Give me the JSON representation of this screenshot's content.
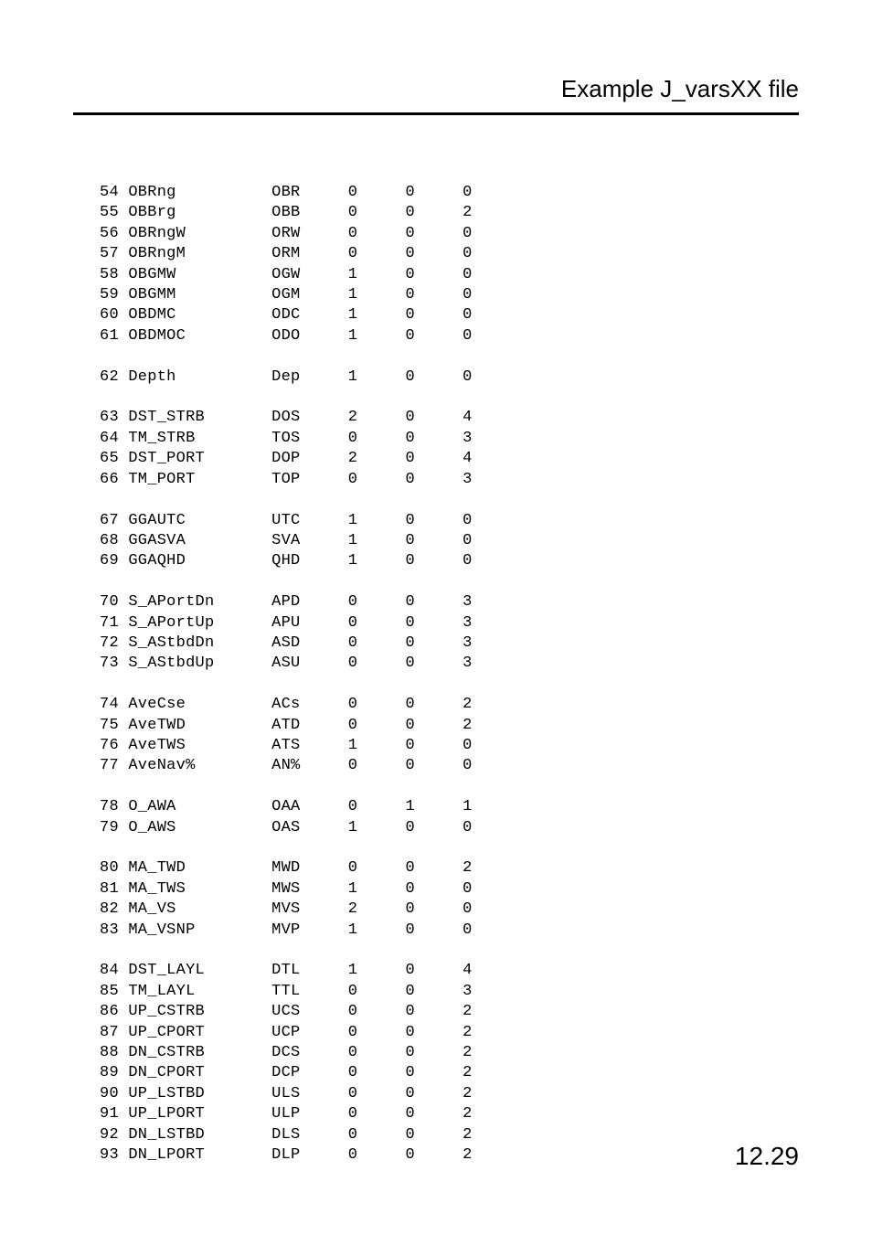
{
  "header": {
    "title": "Example J_varsXX file"
  },
  "pageNumber": "12.29",
  "rows": [
    {
      "num": "54",
      "name": "OBRng",
      "code": "OBR",
      "c1": "0",
      "c2": "0",
      "c3": "0"
    },
    {
      "num": "55",
      "name": "OBBrg",
      "code": "OBB",
      "c1": "0",
      "c2": "0",
      "c3": "2"
    },
    {
      "num": "56",
      "name": "OBRngW",
      "code": "ORW",
      "c1": "0",
      "c2": "0",
      "c3": "0"
    },
    {
      "num": "57",
      "name": "OBRngM",
      "code": "ORM",
      "c1": "0",
      "c2": "0",
      "c3": "0"
    },
    {
      "num": "58",
      "name": "OBGMW",
      "code": "OGW",
      "c1": "1",
      "c2": "0",
      "c3": "0"
    },
    {
      "num": "59",
      "name": "OBGMM",
      "code": "OGM",
      "c1": "1",
      "c2": "0",
      "c3": "0"
    },
    {
      "num": "60",
      "name": "OBDMC",
      "code": "ODC",
      "c1": "1",
      "c2": "0",
      "c3": "0"
    },
    {
      "num": "61",
      "name": "OBDMOC",
      "code": "ODO",
      "c1": "1",
      "c2": "0",
      "c3": "0"
    },
    {
      "blank": true
    },
    {
      "num": "62",
      "name": "Depth",
      "code": "Dep",
      "c1": "1",
      "c2": "0",
      "c3": "0"
    },
    {
      "blank": true
    },
    {
      "num": "63",
      "name": "DST_STRB",
      "code": "DOS",
      "c1": "2",
      "c2": "0",
      "c3": "4"
    },
    {
      "num": "64",
      "name": "TM_STRB",
      "code": "TOS",
      "c1": "0",
      "c2": "0",
      "c3": "3"
    },
    {
      "num": "65",
      "name": "DST_PORT",
      "code": "DOP",
      "c1": "2",
      "c2": "0",
      "c3": "4"
    },
    {
      "num": "66",
      "name": "TM_PORT",
      "code": "TOP",
      "c1": "0",
      "c2": "0",
      "c3": "3"
    },
    {
      "blank": true
    },
    {
      "num": "67",
      "name": "GGAUTC",
      "code": "UTC",
      "c1": "1",
      "c2": "0",
      "c3": "0"
    },
    {
      "num": "68",
      "name": "GGASVA",
      "code": "SVA",
      "c1": "1",
      "c2": "0",
      "c3": "0"
    },
    {
      "num": "69",
      "name": "GGAQHD",
      "code": "QHD",
      "c1": "1",
      "c2": "0",
      "c3": "0"
    },
    {
      "blank": true
    },
    {
      "num": "70",
      "name": "S_APortDn",
      "code": "APD",
      "c1": "0",
      "c2": "0",
      "c3": "3"
    },
    {
      "num": "71",
      "name": "S_APortUp",
      "code": "APU",
      "c1": "0",
      "c2": "0",
      "c3": "3"
    },
    {
      "num": "72",
      "name": "S_AStbdDn",
      "code": "ASD",
      "c1": "0",
      "c2": "0",
      "c3": "3"
    },
    {
      "num": "73",
      "name": "S_AStbdUp",
      "code": "ASU",
      "c1": "0",
      "c2": "0",
      "c3": "3"
    },
    {
      "blank": true
    },
    {
      "num": "74",
      "name": "AveCse",
      "code": "ACs",
      "c1": "0",
      "c2": "0",
      "c3": "2"
    },
    {
      "num": "75",
      "name": "AveTWD",
      "code": "ATD",
      "c1": "0",
      "c2": "0",
      "c3": "2"
    },
    {
      "num": "76",
      "name": "AveTWS",
      "code": "ATS",
      "c1": "1",
      "c2": "0",
      "c3": "0"
    },
    {
      "num": "77",
      "name": "AveNav%",
      "code": "AN%",
      "c1": "0",
      "c2": "0",
      "c3": "0"
    },
    {
      "blank": true
    },
    {
      "num": "78",
      "name": "O_AWA",
      "code": "OAA",
      "c1": "0",
      "c2": "1",
      "c3": "1"
    },
    {
      "num": "79",
      "name": "O_AWS",
      "code": "OAS",
      "c1": "1",
      "c2": "0",
      "c3": "0"
    },
    {
      "blank": true
    },
    {
      "num": "80",
      "name": "MA_TWD",
      "code": "MWD",
      "c1": "0",
      "c2": "0",
      "c3": "2"
    },
    {
      "num": "81",
      "name": "MA_TWS",
      "code": "MWS",
      "c1": "1",
      "c2": "0",
      "c3": "0"
    },
    {
      "num": "82",
      "name": "MA_VS",
      "code": "MVS",
      "c1": "2",
      "c2": "0",
      "c3": "0"
    },
    {
      "num": "83",
      "name": "MA_VSNP",
      "code": "MVP",
      "c1": "1",
      "c2": "0",
      "c3": "0"
    },
    {
      "blank": true
    },
    {
      "num": "84",
      "name": "DST_LAYL",
      "code": "DTL",
      "c1": "1",
      "c2": "0",
      "c3": "4"
    },
    {
      "num": "85",
      "name": "TM_LAYL",
      "code": "TTL",
      "c1": "0",
      "c2": "0",
      "c3": "3"
    },
    {
      "num": "86",
      "name": "UP_CSTRB",
      "code": "UCS",
      "c1": "0",
      "c2": "0",
      "c3": "2"
    },
    {
      "num": "87",
      "name": "UP_CPORT",
      "code": "UCP",
      "c1": "0",
      "c2": "0",
      "c3": "2"
    },
    {
      "num": "88",
      "name": "DN_CSTRB",
      "code": "DCS",
      "c1": "0",
      "c2": "0",
      "c3": "2"
    },
    {
      "num": "89",
      "name": "DN_CPORT",
      "code": "DCP",
      "c1": "0",
      "c2": "0",
      "c3": "2"
    },
    {
      "num": "90",
      "name": "UP_LSTBD",
      "code": "ULS",
      "c1": "0",
      "c2": "0",
      "c3": "2"
    },
    {
      "num": "91",
      "name": "UP_LPORT",
      "code": "ULP",
      "c1": "0",
      "c2": "0",
      "c3": "2"
    },
    {
      "num": "92",
      "name": "DN_LSTBD",
      "code": "DLS",
      "c1": "0",
      "c2": "0",
      "c3": "2"
    },
    {
      "num": "93",
      "name": "DN_LPORT",
      "code": "DLP",
      "c1": "0",
      "c2": "0",
      "c3": "2"
    }
  ],
  "columnWidths": {
    "num": 2,
    "afterNum": 1,
    "name": 15,
    "code": 3,
    "afterCode": 5,
    "c1": 1,
    "afterC1": 5,
    "c2": 1,
    "afterC2": 5,
    "c3": 1
  },
  "styling": {
    "background_color": "#ffffff",
    "text_color": "#000000",
    "header_font": "Arial",
    "body_font": "Courier New",
    "header_fontsize": 26,
    "body_fontsize": 17,
    "pagenum_fontsize": 28,
    "border_width": 3
  }
}
